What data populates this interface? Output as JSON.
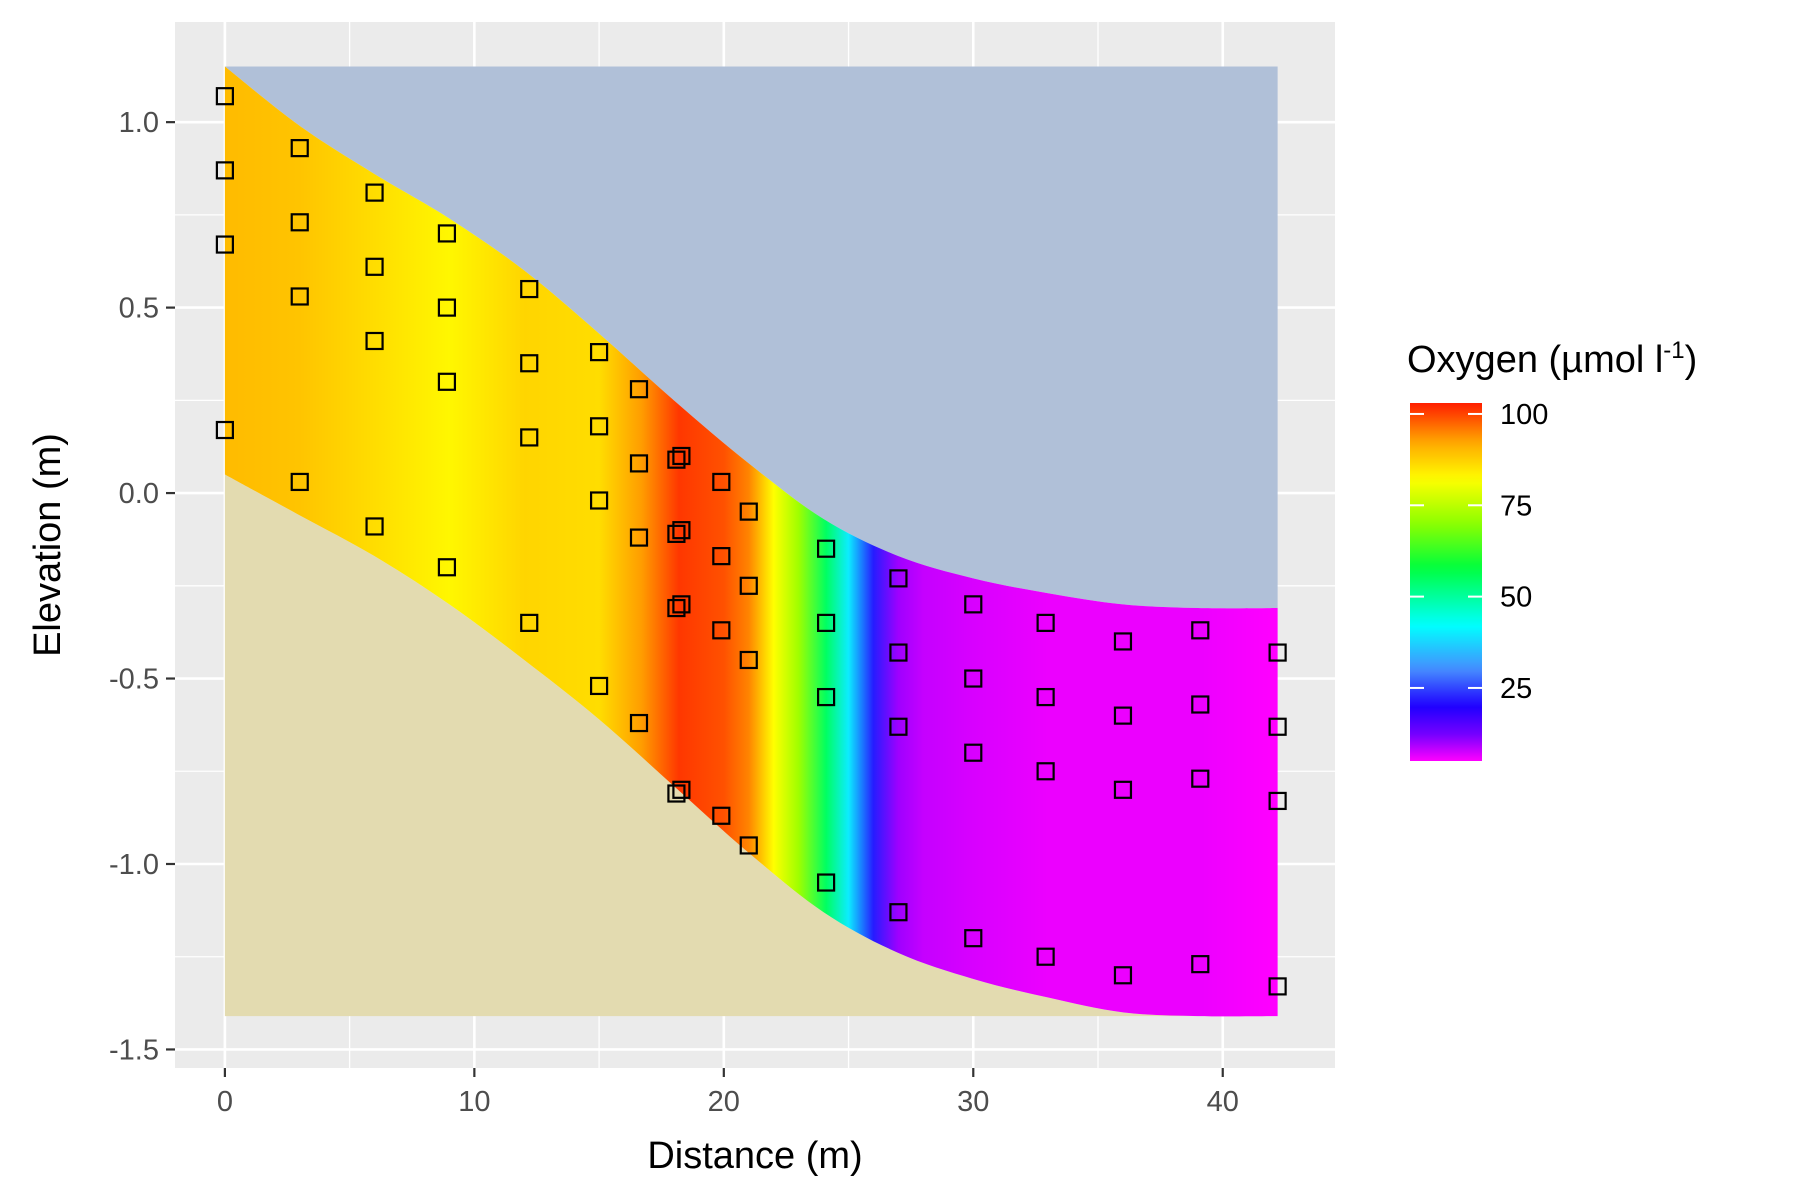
{
  "chart_data": {
    "type": "heatmap",
    "title": "",
    "xlabel": "Distance (m)",
    "ylabel": "Elevation (m)",
    "xlim": [
      -2,
      44.5
    ],
    "ylim": [
      -1.55,
      1.27
    ],
    "x_ticks": [
      0,
      10,
      20,
      30,
      40
    ],
    "y_ticks": [
      1.0,
      0.5,
      0.0,
      -0.5,
      -1.0,
      -1.5
    ],
    "x_tick_labels": [
      "0",
      "10",
      "20",
      "30",
      "40"
    ],
    "y_tick_labels": [
      "1.0",
      "0.5",
      "0.0",
      "-0.5",
      "-1.0",
      "-1.5"
    ],
    "grid": true,
    "legend": {
      "title_main": "Oxygen (µmol l",
      "title_sup": "-1",
      "title_close": ")",
      "placement": "right",
      "ticks": [
        100,
        75,
        50,
        25
      ],
      "tick_labels": [
        "100",
        "75",
        "50",
        "25"
      ],
      "range": [
        5,
        103
      ]
    },
    "colors": {
      "panel_background": "#ebebeb",
      "grid": "#ffffff",
      "water": "#b0c0d8",
      "sediment": "#e3dbb0",
      "marker_stroke": "#000000"
    },
    "surface_line": {
      "x": [
        0,
        3,
        6,
        9,
        12,
        15,
        18,
        21,
        24,
        27,
        30,
        33,
        36,
        39,
        42.2
      ],
      "y": [
        1.15,
        0.99,
        0.86,
        0.74,
        0.6,
        0.43,
        0.25,
        0.08,
        -0.07,
        -0.17,
        -0.23,
        -0.27,
        -0.3,
        -0.31,
        -0.31
      ]
    },
    "bottom_line": {
      "x": [
        0,
        3,
        6,
        9,
        12,
        15,
        18,
        21,
        24,
        27,
        30,
        33,
        36,
        39,
        42.2
      ],
      "y": [
        0.05,
        -0.06,
        -0.17,
        -0.3,
        -0.45,
        -0.61,
        -0.79,
        -0.97,
        -1.13,
        -1.24,
        -1.31,
        -1.36,
        -1.4,
        -1.41,
        -1.41
      ]
    },
    "oxygen_profile": {
      "x": [
        0,
        3,
        6,
        9,
        12,
        15,
        16.7,
        18.2,
        20,
        21,
        22,
        23,
        24.1,
        25,
        26,
        27,
        28,
        30,
        33,
        36,
        39,
        42.2
      ],
      "values": [
        90,
        89,
        86,
        83,
        87,
        86,
        93,
        101,
        99,
        95,
        82,
        72,
        55,
        40,
        22,
        10,
        8,
        7,
        6,
        6,
        6,
        5
      ]
    },
    "sample_points": [
      {
        "x": 0,
        "y": 1.07
      },
      {
        "x": 0,
        "y": 0.87
      },
      {
        "x": 0,
        "y": 0.67
      },
      {
        "x": 0,
        "y": 0.17
      },
      {
        "x": 3,
        "y": 0.93
      },
      {
        "x": 3,
        "y": 0.73
      },
      {
        "x": 3,
        "y": 0.53
      },
      {
        "x": 3,
        "y": 0.03
      },
      {
        "x": 6,
        "y": 0.81
      },
      {
        "x": 6,
        "y": 0.61
      },
      {
        "x": 6,
        "y": 0.41
      },
      {
        "x": 6,
        "y": -0.09
      },
      {
        "x": 8.9,
        "y": 0.7
      },
      {
        "x": 8.9,
        "y": 0.5
      },
      {
        "x": 8.9,
        "y": 0.3
      },
      {
        "x": 8.9,
        "y": -0.2
      },
      {
        "x": 12.2,
        "y": 0.55
      },
      {
        "x": 12.2,
        "y": 0.35
      },
      {
        "x": 12.2,
        "y": 0.15
      },
      {
        "x": 12.2,
        "y": -0.35
      },
      {
        "x": 15,
        "y": 0.38
      },
      {
        "x": 15,
        "y": 0.18
      },
      {
        "x": 15,
        "y": -0.02
      },
      {
        "x": 15,
        "y": -0.52
      },
      {
        "x": 16.6,
        "y": 0.28
      },
      {
        "x": 16.6,
        "y": 0.08
      },
      {
        "x": 16.6,
        "y": -0.12
      },
      {
        "x": 16.6,
        "y": -0.62
      },
      {
        "x": 18.1,
        "y": 0.09
      },
      {
        "x": 18.1,
        "y": -0.11
      },
      {
        "x": 18.1,
        "y": -0.31
      },
      {
        "x": 18.1,
        "y": -0.81
      },
      {
        "x": 18.3,
        "y": 0.1
      },
      {
        "x": 18.3,
        "y": -0.1
      },
      {
        "x": 18.3,
        "y": -0.3
      },
      {
        "x": 18.3,
        "y": -0.8
      },
      {
        "x": 19.9,
        "y": 0.03
      },
      {
        "x": 19.9,
        "y": -0.17
      },
      {
        "x": 19.9,
        "y": -0.37
      },
      {
        "x": 19.9,
        "y": -0.87
      },
      {
        "x": 21,
        "y": -0.05
      },
      {
        "x": 21,
        "y": -0.25
      },
      {
        "x": 21,
        "y": -0.45
      },
      {
        "x": 21,
        "y": -0.95
      },
      {
        "x": 24.1,
        "y": -0.15
      },
      {
        "x": 24.1,
        "y": -0.35
      },
      {
        "x": 24.1,
        "y": -0.55
      },
      {
        "x": 24.1,
        "y": -1.05
      },
      {
        "x": 27,
        "y": -0.23
      },
      {
        "x": 27,
        "y": -0.43
      },
      {
        "x": 27,
        "y": -0.63
      },
      {
        "x": 27,
        "y": -1.13
      },
      {
        "x": 30,
        "y": -0.3
      },
      {
        "x": 30,
        "y": -0.5
      },
      {
        "x": 30,
        "y": -0.7
      },
      {
        "x": 30,
        "y": -1.2
      },
      {
        "x": 32.9,
        "y": -0.35
      },
      {
        "x": 32.9,
        "y": -0.55
      },
      {
        "x": 32.9,
        "y": -0.75
      },
      {
        "x": 32.9,
        "y": -1.25
      },
      {
        "x": 36,
        "y": -0.4
      },
      {
        "x": 36,
        "y": -0.6
      },
      {
        "x": 36,
        "y": -0.8
      },
      {
        "x": 36,
        "y": -1.3
      },
      {
        "x": 39.1,
        "y": -0.37
      },
      {
        "x": 39.1,
        "y": -0.57
      },
      {
        "x": 39.1,
        "y": -0.77
      },
      {
        "x": 39.1,
        "y": -1.27
      },
      {
        "x": 42.2,
        "y": -0.43
      },
      {
        "x": 42.2,
        "y": -0.63
      },
      {
        "x": 42.2,
        "y": -0.83
      },
      {
        "x": 42.2,
        "y": -1.33
      }
    ]
  }
}
